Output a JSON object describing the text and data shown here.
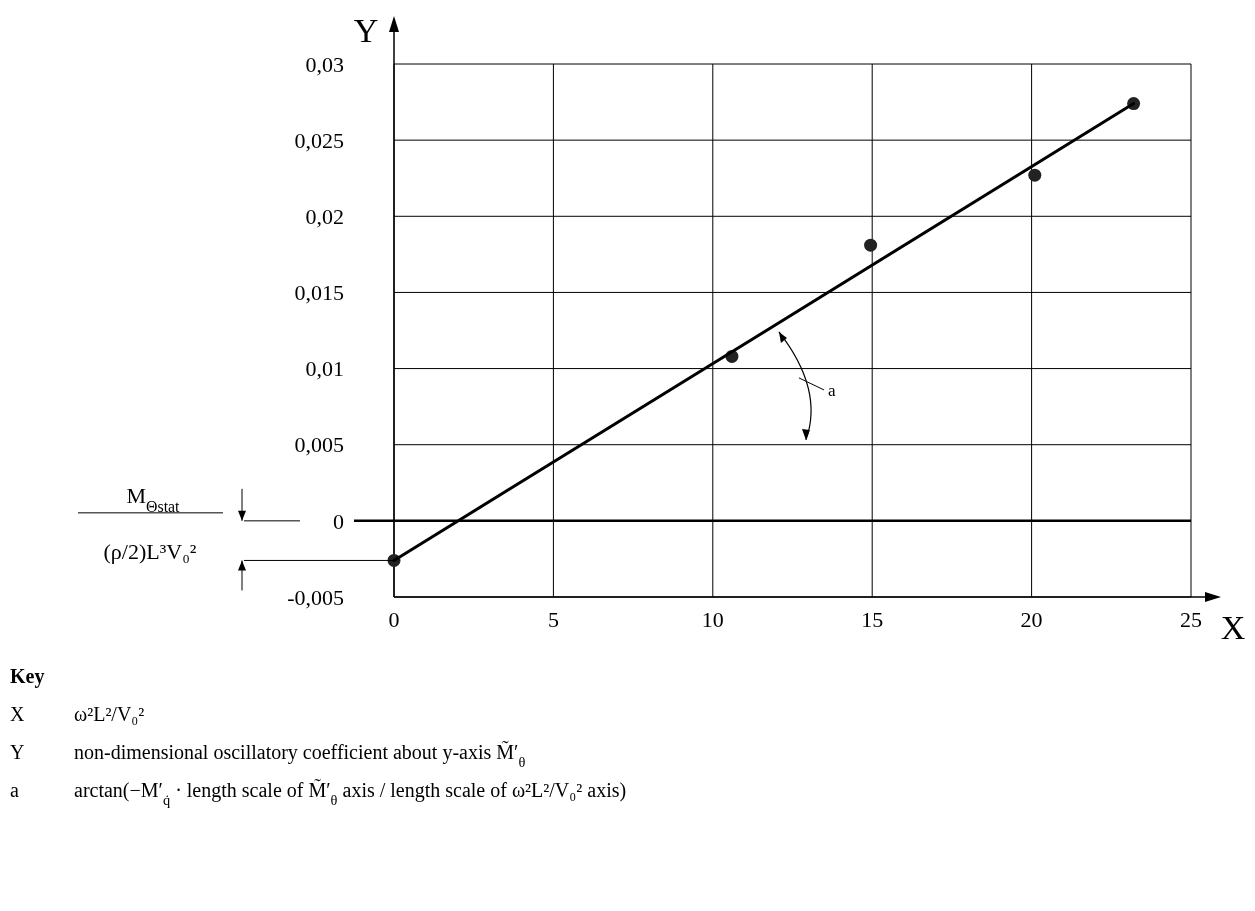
{
  "chart_data": {
    "type": "scatter",
    "xlabel": "X",
    "ylabel": "Y",
    "xlim": [
      0,
      25
    ],
    "xticks": [
      0,
      5,
      10,
      15,
      20,
      25
    ],
    "ylim": [
      -0.005,
      0.03
    ],
    "yticks": [
      {
        "value": -0.005,
        "label": "-0,005"
      },
      0,
      {
        "value": 0.005,
        "label": "0,005"
      },
      {
        "value": 0.01,
        "label": "0,01"
      },
      {
        "value": 0.015,
        "label": "0,015"
      },
      {
        "value": 0.02,
        "label": "0,02"
      },
      {
        "value": 0.025,
        "label": "0,025"
      },
      {
        "value": 0.03,
        "label": "0,03"
      }
    ],
    "grid": true,
    "ref_lines": [
      {
        "axis": "y",
        "value": 0,
        "color": "#000000"
      }
    ],
    "series": [
      {
        "marker": "circle",
        "color": "#222222",
        "x": [
          0,
          10.6,
          14.95,
          20.1,
          23.2
        ],
        "values": [
          -0.0026,
          0.0108,
          0.0181,
          0.0227,
          0.0274
        ]
      },
      {
        "type": "line",
        "color": "#000000",
        "line_style": "solid",
        "x": [
          0,
          23.2
        ],
        "values": [
          -0.0026,
          0.0274
        ]
      }
    ],
    "annotations": [
      "M$_{Θstat}$",
      "(ρ/2)L³V₀²",
      "a",
      "Key",
      "X  ω²L²/V₀²",
      "Y  non-dimensional oscillatory coefficient about y-axis  M̃′$_{θ}$",
      "a  arctan(−M′$_{q̇}$ · length scale of M̃′$_{θ}$ axis / length scale of ω²L²/V₀² axis)"
    ]
  }
}
